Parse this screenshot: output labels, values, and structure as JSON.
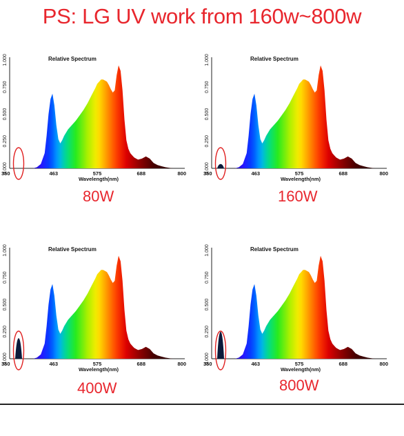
{
  "headline": "PS: LG UV work from 160w~800w",
  "colors": {
    "headline": "#e8262d",
    "caption": "#e8262d",
    "uv_fill": "#0a1a3a",
    "highlight_circle": "#e02020"
  },
  "chart_data": [
    {
      "type": "area",
      "title": "Relative Spectrum",
      "xlabel": "Wavelength(nm)",
      "ylabel": "",
      "caption": "80W",
      "xlim": [
        350,
        800
      ],
      "ylim": [
        0,
        1
      ],
      "x_ticks": [
        "350",
        "463",
        "575",
        "688",
        "800"
      ],
      "y_ticks": [
        "0.000",
        "0.250",
        "0.500",
        "0.750",
        "1.000"
      ],
      "uv_peak": 0.0,
      "x": [
        350,
        365,
        380,
        390,
        395,
        400,
        405,
        410,
        420,
        430,
        440,
        445,
        450,
        455,
        460,
        465,
        470,
        475,
        480,
        485,
        490,
        500,
        510,
        520,
        530,
        540,
        550,
        560,
        570,
        575,
        580,
        585,
        590,
        595,
        600,
        605,
        610,
        615,
        620,
        625,
        630,
        635,
        640,
        645,
        650,
        655,
        660,
        665,
        670,
        675,
        680,
        690,
        700,
        710,
        720,
        730,
        740,
        750,
        760,
        770,
        780
      ],
      "y": [
        0,
        0,
        0,
        0,
        0,
        0,
        0,
        0,
        0.01,
        0.04,
        0.14,
        0.3,
        0.5,
        0.64,
        0.69,
        0.58,
        0.4,
        0.27,
        0.23,
        0.26,
        0.3,
        0.36,
        0.4,
        0.44,
        0.49,
        0.54,
        0.6,
        0.67,
        0.74,
        0.78,
        0.8,
        0.82,
        0.82,
        0.81,
        0.8,
        0.77,
        0.73,
        0.7,
        0.72,
        0.86,
        0.95,
        0.9,
        0.72,
        0.45,
        0.26,
        0.18,
        0.14,
        0.12,
        0.1,
        0.09,
        0.08,
        0.09,
        0.11,
        0.09,
        0.05,
        0.03,
        0.02,
        0.01,
        0.005,
        0,
        0
      ]
    },
    {
      "type": "area",
      "title": "Relative Spectrum",
      "xlabel": "Wavelength(nm)",
      "ylabel": "",
      "caption": "160W",
      "xlim": [
        350,
        800
      ],
      "ylim": [
        0,
        1
      ],
      "x_ticks": [
        "350",
        "463",
        "575",
        "688",
        "800"
      ],
      "y_ticks": [
        "0.000",
        "0.250",
        "0.500",
        "0.750",
        "1.000"
      ],
      "uv_peak": 0.04,
      "x": [
        350,
        365,
        380,
        390,
        395,
        400,
        405,
        410,
        420,
        430,
        440,
        445,
        450,
        455,
        460,
        465,
        470,
        475,
        480,
        485,
        490,
        500,
        510,
        520,
        530,
        540,
        550,
        560,
        570,
        575,
        580,
        585,
        590,
        595,
        600,
        605,
        610,
        615,
        620,
        625,
        630,
        635,
        640,
        645,
        650,
        655,
        660,
        665,
        670,
        675,
        680,
        690,
        700,
        710,
        720,
        730,
        740,
        750,
        760,
        770,
        780
      ],
      "y": [
        0,
        0,
        0,
        0,
        0,
        0,
        0,
        0,
        0.01,
        0.04,
        0.14,
        0.3,
        0.5,
        0.64,
        0.69,
        0.58,
        0.4,
        0.27,
        0.23,
        0.26,
        0.3,
        0.36,
        0.4,
        0.44,
        0.49,
        0.54,
        0.6,
        0.67,
        0.74,
        0.78,
        0.8,
        0.82,
        0.82,
        0.81,
        0.8,
        0.77,
        0.73,
        0.7,
        0.72,
        0.86,
        0.95,
        0.9,
        0.72,
        0.45,
        0.26,
        0.18,
        0.14,
        0.12,
        0.1,
        0.09,
        0.08,
        0.09,
        0.11,
        0.09,
        0.05,
        0.03,
        0.02,
        0.01,
        0.005,
        0,
        0
      ]
    },
    {
      "type": "area",
      "title": "Relative Spectrum",
      "xlabel": "Wavelength(nm)",
      "ylabel": "",
      "caption": "400W",
      "xlim": [
        350,
        800
      ],
      "ylim": [
        0,
        1
      ],
      "x_ticks": [
        "350",
        "463",
        "575",
        "688",
        "800"
      ],
      "y_ticks": [
        "0.000",
        "0.250",
        "0.500",
        "0.750",
        "1.000"
      ],
      "uv_peak": 0.19,
      "x": [
        350,
        365,
        380,
        390,
        395,
        400,
        405,
        410,
        420,
        430,
        440,
        445,
        450,
        455,
        460,
        465,
        470,
        475,
        480,
        485,
        490,
        500,
        510,
        520,
        530,
        540,
        550,
        560,
        570,
        575,
        580,
        585,
        590,
        595,
        600,
        605,
        610,
        615,
        620,
        625,
        630,
        635,
        640,
        645,
        650,
        655,
        660,
        665,
        670,
        675,
        680,
        690,
        700,
        710,
        720,
        730,
        740,
        750,
        760,
        770,
        780
      ],
      "y": [
        0,
        0,
        0,
        0,
        0,
        0,
        0,
        0,
        0.01,
        0.04,
        0.14,
        0.3,
        0.5,
        0.64,
        0.69,
        0.58,
        0.4,
        0.27,
        0.23,
        0.26,
        0.3,
        0.36,
        0.4,
        0.44,
        0.49,
        0.54,
        0.6,
        0.67,
        0.74,
        0.78,
        0.8,
        0.82,
        0.82,
        0.81,
        0.8,
        0.77,
        0.73,
        0.7,
        0.72,
        0.86,
        0.95,
        0.9,
        0.72,
        0.45,
        0.26,
        0.18,
        0.14,
        0.12,
        0.1,
        0.09,
        0.08,
        0.09,
        0.11,
        0.09,
        0.05,
        0.03,
        0.02,
        0.01,
        0.005,
        0,
        0
      ]
    },
    {
      "type": "area",
      "title": "Relative Spectrum",
      "xlabel": "Wavelength(nm)",
      "ylabel": "",
      "caption": "800W",
      "xlim": [
        350,
        800
      ],
      "ylim": [
        0,
        1
      ],
      "x_ticks": [
        "350",
        "463",
        "575",
        "688",
        "800"
      ],
      "y_ticks": [
        "0.000",
        "0.250",
        "0.500",
        "0.750",
        "1.000"
      ],
      "uv_peak": 0.25,
      "x": [
        350,
        365,
        380,
        390,
        395,
        400,
        405,
        410,
        420,
        430,
        440,
        445,
        450,
        455,
        460,
        465,
        470,
        475,
        480,
        485,
        490,
        500,
        510,
        520,
        530,
        540,
        550,
        560,
        570,
        575,
        580,
        585,
        590,
        595,
        600,
        605,
        610,
        615,
        620,
        625,
        630,
        635,
        640,
        645,
        650,
        655,
        660,
        665,
        670,
        675,
        680,
        690,
        700,
        710,
        720,
        730,
        740,
        750,
        760,
        770,
        780
      ],
      "y": [
        0,
        0,
        0,
        0,
        0,
        0,
        0,
        0,
        0.01,
        0.04,
        0.14,
        0.3,
        0.5,
        0.64,
        0.69,
        0.58,
        0.4,
        0.27,
        0.23,
        0.26,
        0.3,
        0.36,
        0.4,
        0.44,
        0.49,
        0.54,
        0.6,
        0.67,
        0.74,
        0.78,
        0.8,
        0.82,
        0.82,
        0.81,
        0.8,
        0.77,
        0.73,
        0.7,
        0.72,
        0.86,
        0.95,
        0.9,
        0.72,
        0.45,
        0.26,
        0.18,
        0.14,
        0.12,
        0.1,
        0.09,
        0.08,
        0.09,
        0.11,
        0.09,
        0.05,
        0.03,
        0.02,
        0.01,
        0.005,
        0,
        0
      ]
    }
  ]
}
